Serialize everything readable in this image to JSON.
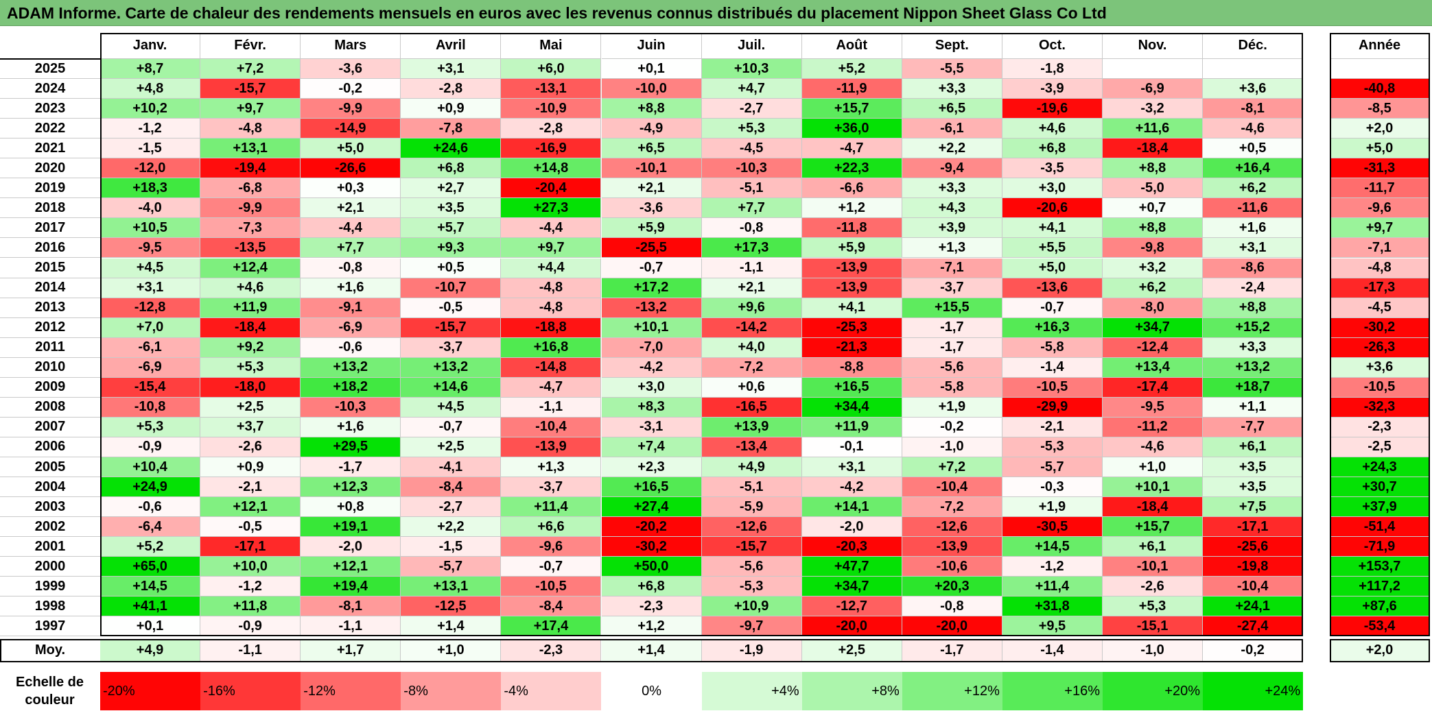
{
  "title": "ADAM Informe. Carte de chaleur des rendements mensuels en euros avec les revenus connus distribués du placement Nippon Sheet Glass Co Ltd",
  "chart_data": {
    "type": "heatmap",
    "months": [
      "Janv.",
      "Févr.",
      "Mars",
      "Avril",
      "Mai",
      "Juin",
      "Juil.",
      "Août",
      "Sept.",
      "Oct.",
      "Nov.",
      "Déc."
    ],
    "annual_header": "Année",
    "avg_label": "Moy.",
    "years": [
      "2025",
      "2024",
      "2023",
      "2022",
      "2021",
      "2020",
      "2019",
      "2018",
      "2017",
      "2016",
      "2015",
      "2014",
      "2013",
      "2012",
      "2011",
      "2010",
      "2009",
      "2008",
      "2007",
      "2006",
      "2005",
      "2004",
      "2003",
      "2002",
      "2001",
      "2000",
      "1999",
      "1998",
      "1997"
    ],
    "values": [
      [
        8.7,
        7.2,
        -3.6,
        3.1,
        6.0,
        0.1,
        10.3,
        5.2,
        -5.5,
        -1.8,
        null,
        null
      ],
      [
        4.8,
        -15.7,
        -0.2,
        -2.8,
        -13.1,
        -10.0,
        4.7,
        -11.9,
        3.3,
        -3.9,
        -6.9,
        3.6
      ],
      [
        10.2,
        9.7,
        -9.9,
        0.9,
        -10.9,
        8.8,
        -2.7,
        15.7,
        6.5,
        -19.6,
        -3.2,
        -8.1
      ],
      [
        -1.2,
        -4.8,
        -14.9,
        -7.8,
        -2.8,
        -4.9,
        5.3,
        36.0,
        -6.1,
        4.6,
        11.6,
        -4.6
      ],
      [
        -1.5,
        13.1,
        5.0,
        24.6,
        -16.9,
        6.5,
        -4.5,
        -4.7,
        2.2,
        6.8,
        -18.4,
        0.5
      ],
      [
        -12.0,
        -19.4,
        -26.6,
        6.8,
        14.8,
        -10.1,
        -10.3,
        22.3,
        -9.4,
        -3.5,
        8.8,
        16.4
      ],
      [
        18.3,
        -6.8,
        0.3,
        2.7,
        -20.4,
        2.1,
        -5.1,
        -6.6,
        3.3,
        3.0,
        -5.0,
        6.2
      ],
      [
        -4.0,
        -9.9,
        2.1,
        3.5,
        27.3,
        -3.6,
        7.7,
        1.2,
        4.3,
        -20.6,
        0.7,
        -11.6
      ],
      [
        10.5,
        -7.3,
        -4.4,
        5.7,
        -4.4,
        5.9,
        -0.8,
        -11.8,
        3.9,
        4.1,
        8.8,
        1.6
      ],
      [
        -9.5,
        -13.5,
        7.7,
        9.3,
        9.7,
        -25.5,
        17.3,
        5.9,
        1.3,
        5.5,
        -9.8,
        3.1
      ],
      [
        4.5,
        12.4,
        -0.8,
        0.5,
        4.4,
        -0.7,
        -1.1,
        -13.9,
        -7.1,
        5.0,
        3.2,
        -8.6
      ],
      [
        3.1,
        4.6,
        1.6,
        -10.7,
        -4.8,
        17.2,
        2.1,
        -13.9,
        -3.7,
        -13.6,
        6.2,
        -2.4
      ],
      [
        -12.8,
        11.9,
        -9.1,
        -0.5,
        -4.8,
        -13.2,
        9.6,
        4.1,
        15.5,
        -0.7,
        -8.0,
        8.8
      ],
      [
        7.0,
        -18.4,
        -6.9,
        -15.7,
        -18.8,
        10.1,
        -14.2,
        -25.3,
        -1.7,
        16.3,
        34.7,
        15.2
      ],
      [
        -6.1,
        9.2,
        -0.6,
        -3.7,
        16.8,
        -7.0,
        4.0,
        -21.3,
        -1.7,
        -5.8,
        -12.4,
        3.3
      ],
      [
        -6.9,
        5.3,
        13.2,
        13.2,
        -14.8,
        -4.2,
        -7.2,
        -8.8,
        -5.6,
        -1.4,
        13.4,
        13.2
      ],
      [
        -15.4,
        -18.0,
        18.2,
        14.6,
        -4.7,
        3.0,
        0.6,
        16.5,
        -5.8,
        -10.5,
        -17.4,
        18.7
      ],
      [
        -10.8,
        2.5,
        -10.3,
        4.5,
        -1.1,
        8.3,
        -16.5,
        34.4,
        1.9,
        -29.9,
        -9.5,
        1.1
      ],
      [
        5.3,
        3.7,
        1.6,
        -0.7,
        -10.4,
        -3.1,
        13.9,
        11.9,
        -0.2,
        -2.1,
        -11.2,
        -7.7
      ],
      [
        -0.9,
        -2.6,
        29.5,
        2.5,
        -13.9,
        7.4,
        -13.4,
        -0.1,
        -1.0,
        -5.3,
        -4.6,
        6.1
      ],
      [
        10.4,
        0.9,
        -1.7,
        -4.1,
        1.3,
        2.3,
        4.9,
        3.1,
        7.2,
        -5.7,
        1.0,
        3.5
      ],
      [
        24.9,
        -2.1,
        12.3,
        -8.4,
        -3.7,
        16.5,
        -5.1,
        -4.2,
        -10.4,
        -0.3,
        10.1,
        3.5
      ],
      [
        -0.6,
        12.1,
        0.8,
        -2.7,
        11.4,
        27.4,
        -5.9,
        14.1,
        -7.2,
        1.9,
        -18.4,
        7.5
      ],
      [
        -6.4,
        -0.5,
        19.1,
        2.2,
        6.6,
        -20.2,
        -12.6,
        -2.0,
        -12.6,
        -30.5,
        15.7,
        -17.1
      ],
      [
        5.2,
        -17.1,
        -2.0,
        -1.5,
        -9.6,
        -30.2,
        -15.7,
        -20.3,
        -13.9,
        14.5,
        6.1,
        -25.6
      ],
      [
        65.0,
        10.0,
        12.1,
        -5.7,
        -0.7,
        50.0,
        -5.6,
        47.7,
        -10.6,
        -1.2,
        -10.1,
        -19.8
      ],
      [
        14.5,
        -1.2,
        19.4,
        13.1,
        -10.5,
        6.8,
        -5.3,
        34.7,
        20.3,
        11.4,
        -2.6,
        -10.4
      ],
      [
        41.1,
        11.8,
        -8.1,
        -12.5,
        -8.4,
        -2.3,
        10.9,
        -12.7,
        -0.8,
        31.8,
        5.3,
        24.1
      ],
      [
        0.1,
        -0.9,
        -1.1,
        1.4,
        17.4,
        1.2,
        -9.7,
        -20.0,
        -20.0,
        9.5,
        -15.1,
        -27.4
      ]
    ],
    "annual": [
      null,
      -40.8,
      -8.5,
      2.0,
      5.0,
      -31.3,
      -11.7,
      -9.6,
      9.7,
      -7.1,
      -4.8,
      -17.3,
      -4.5,
      -30.2,
      -26.3,
      3.6,
      -10.5,
      -32.3,
      -2.3,
      -2.5,
      24.3,
      30.7,
      37.9,
      -51.4,
      -71.9,
      153.7,
      117.2,
      87.6,
      -53.4
    ],
    "averages": [
      4.9,
      -1.1,
      1.7,
      1.0,
      -2.3,
      1.4,
      -1.9,
      2.5,
      -1.7,
      -1.4,
      -1.0,
      -0.2
    ],
    "annual_average": 2.0,
    "scale": {
      "label_line1": "Echelle de",
      "label_line2": "couleur",
      "steps": [
        {
          "text": "-20%",
          "value": -20
        },
        {
          "text": "-16%",
          "value": -16
        },
        {
          "text": "-12%",
          "value": -12
        },
        {
          "text": "-8%",
          "value": -8
        },
        {
          "text": "-4%",
          "value": -4
        },
        {
          "text": "0%",
          "value": 0
        },
        {
          "text": "+4%",
          "value": 4
        },
        {
          "text": "+8%",
          "value": 8
        },
        {
          "text": "+12%",
          "value": 12
        },
        {
          "text": "+16%",
          "value": 16
        },
        {
          "text": "+20%",
          "value": 20
        },
        {
          "text": "+24%",
          "value": 24
        }
      ]
    },
    "colors": {
      "negative_max": "#ff0000",
      "positive_max": "#00e000",
      "neutral": "#ffffff",
      "title_background": "#7cc47a"
    }
  }
}
